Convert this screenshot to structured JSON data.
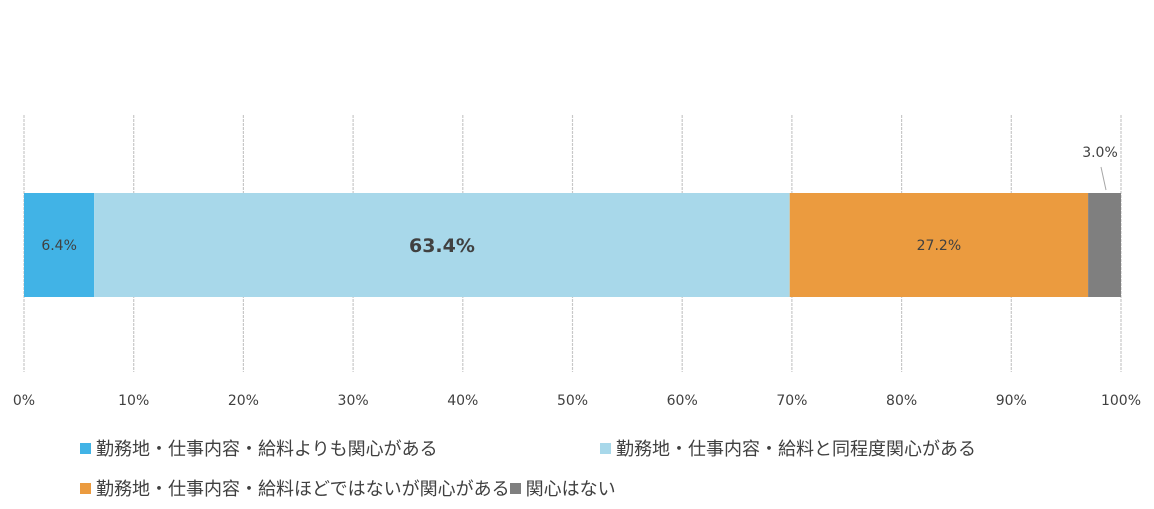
{
  "chart_data": {
    "type": "bar",
    "orientation": "horizontal",
    "stacked": true,
    "categories": [
      ""
    ],
    "xlim": [
      0,
      100
    ],
    "x_ticks": [
      "0%",
      "10%",
      "20%",
      "30%",
      "40%",
      "50%",
      "60%",
      "70%",
      "80%",
      "90%",
      "100%"
    ],
    "grid": "vertical",
    "legend_position": "bottom",
    "series": [
      {
        "name": "勤務地・仕事内容・給料よりも関心がある",
        "values": [
          6.4
        ],
        "label": "6.4%",
        "color": "#41b3e6"
      },
      {
        "name": "勤務地・仕事内容・給料と同程度関心がある",
        "values": [
          63.4
        ],
        "label": "63.4%",
        "color": "#a8d8ea"
      },
      {
        "name": "勤務地・仕事内容・給料ほどではないが関心がある",
        "values": [
          27.2
        ],
        "label": "27.2%",
        "color": "#eb9b3f"
      },
      {
        "name": "関心はない",
        "values": [
          3.0
        ],
        "label": "3.0%",
        "color": "#7f7f7f"
      }
    ]
  }
}
